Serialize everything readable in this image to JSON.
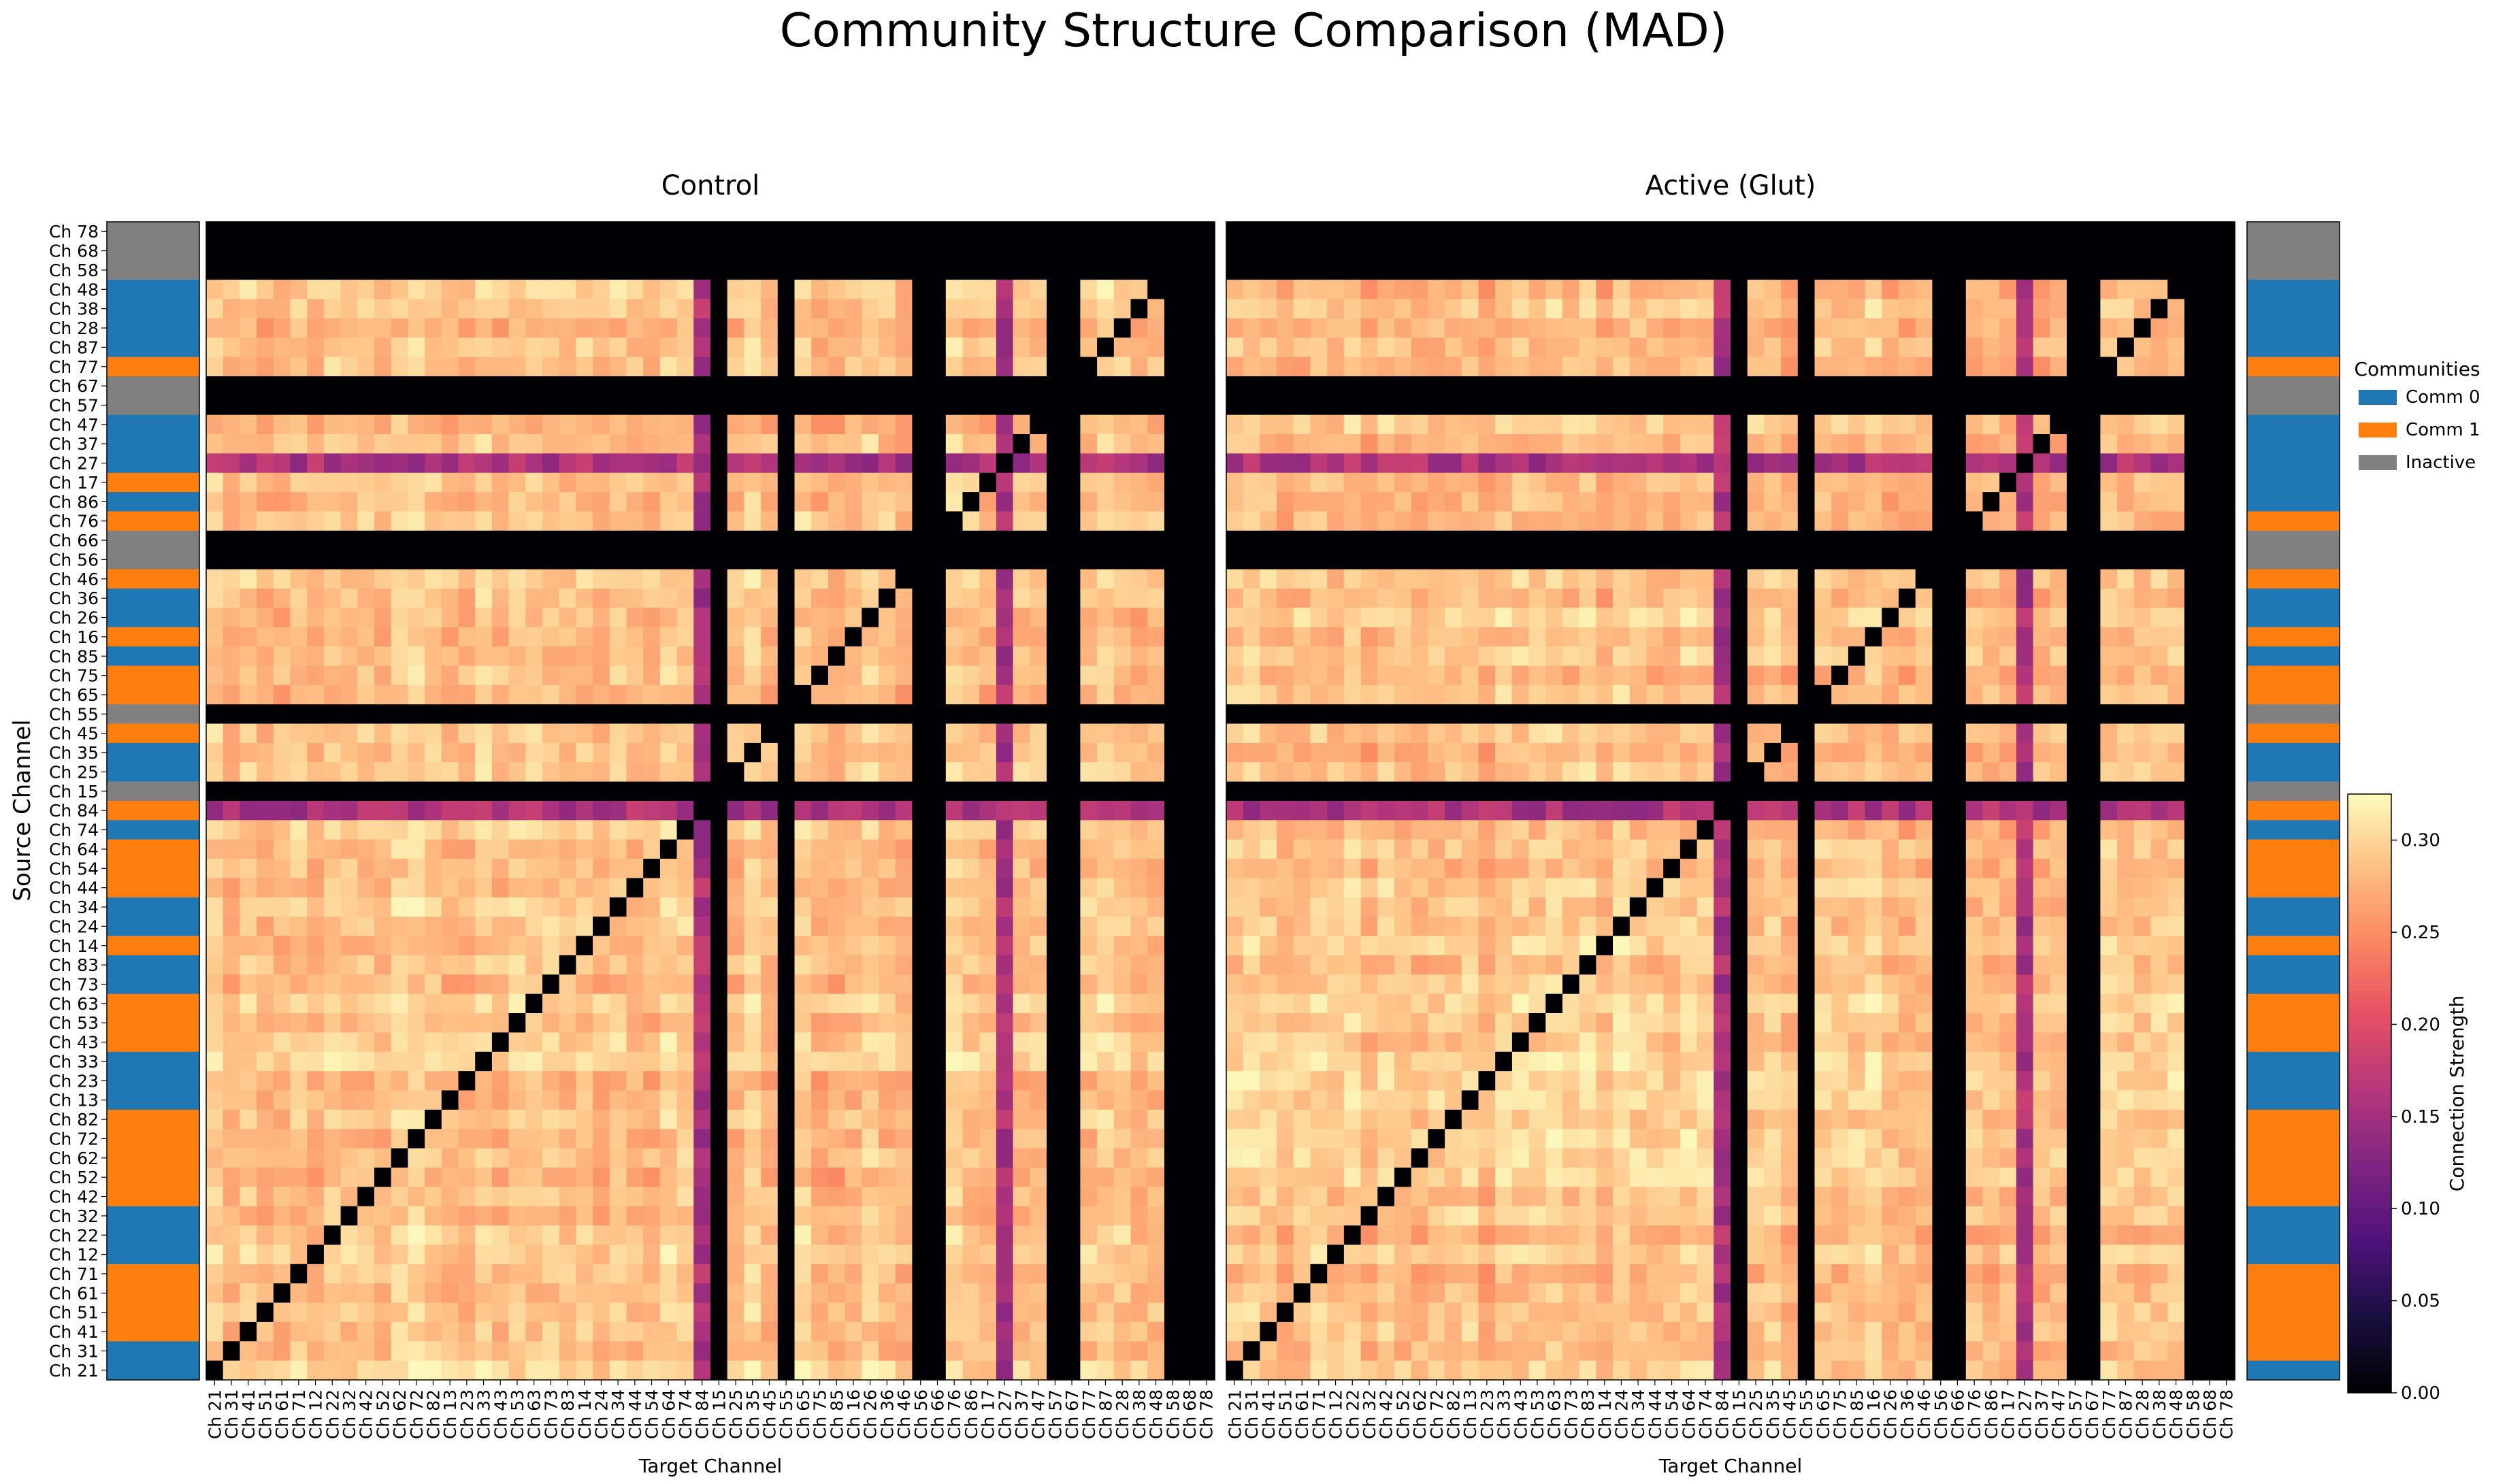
{
  "figure": {
    "title": "Community Structure Comparison (MAD)",
    "ylabel": "Source Channel",
    "xlabel": "Target Channel"
  },
  "legend": {
    "title": "Communities",
    "entries": [
      {
        "label": "Comm 0",
        "color": "#1f77b4"
      },
      {
        "label": "Comm 1",
        "color": "#ff7f0e"
      },
      {
        "label": "Inactive",
        "color": "#808080"
      }
    ]
  },
  "colorbar": {
    "label": "Connection Strength",
    "ticks": [
      "0.00",
      "0.05",
      "0.10",
      "0.15",
      "0.20",
      "0.25",
      "0.30"
    ],
    "tick_values": [
      0,
      0.05,
      0.1,
      0.15,
      0.2,
      0.25,
      0.3
    ],
    "range": [
      0,
      0.325
    ],
    "colormap": "magma"
  },
  "chart_data": [
    {
      "type": "heatmap",
      "title": "Control",
      "xlabel": "Target Channel",
      "ylabel": "Source Channel",
      "rows_top_to_bottom": [
        "Ch 78",
        "Ch 68",
        "Ch 58",
        "Ch 48",
        "Ch 38",
        "Ch 28",
        "Ch 87",
        "Ch 77",
        "Ch 67",
        "Ch 57",
        "Ch 47",
        "Ch 37",
        "Ch 27",
        "Ch 17",
        "Ch 86",
        "Ch 76",
        "Ch 66",
        "Ch 56",
        "Ch 46",
        "Ch 36",
        "Ch 26",
        "Ch 16",
        "Ch 85",
        "Ch 75",
        "Ch 65",
        "Ch 55",
        "Ch 45",
        "Ch 35",
        "Ch 25",
        "Ch 15",
        "Ch 84",
        "Ch 74",
        "Ch 64",
        "Ch 54",
        "Ch 44",
        "Ch 34",
        "Ch 24",
        "Ch 14",
        "Ch 83",
        "Ch 73",
        "Ch 63",
        "Ch 53",
        "Ch 43",
        "Ch 33",
        "Ch 23",
        "Ch 13",
        "Ch 82",
        "Ch 72",
        "Ch 62",
        "Ch 52",
        "Ch 42",
        "Ch 32",
        "Ch 22",
        "Ch 12",
        "Ch 71",
        "Ch 61",
        "Ch 51",
        "Ch 41",
        "Ch 31",
        "Ch 21"
      ],
      "columns_left_to_right": [
        "Ch 21",
        "Ch 31",
        "Ch 41",
        "Ch 51",
        "Ch 61",
        "Ch 71",
        "Ch 12",
        "Ch 22",
        "Ch 32",
        "Ch 42",
        "Ch 52",
        "Ch 62",
        "Ch 72",
        "Ch 82",
        "Ch 13",
        "Ch 23",
        "Ch 33",
        "Ch 43",
        "Ch 53",
        "Ch 63",
        "Ch 73",
        "Ch 83",
        "Ch 14",
        "Ch 24",
        "Ch 34",
        "Ch 44",
        "Ch 54",
        "Ch 64",
        "Ch 74",
        "Ch 84",
        "Ch 15",
        "Ch 25",
        "Ch 35",
        "Ch 45",
        "Ch 55",
        "Ch 65",
        "Ch 75",
        "Ch 85",
        "Ch 16",
        "Ch 26",
        "Ch 36",
        "Ch 46",
        "Ch 56",
        "Ch 66",
        "Ch 76",
        "Ch 86",
        "Ch 17",
        "Ch 27",
        "Ch 37",
        "Ch 47",
        "Ch 57",
        "Ch 67",
        "Ch 77",
        "Ch 87",
        "Ch 28",
        "Ch 38",
        "Ch 48",
        "Ch 58",
        "Ch 68",
        "Ch 78"
      ],
      "row_communities_top_to_bottom": [
        "Inactive",
        "Inactive",
        "Inactive",
        "Comm 0",
        "Comm 0",
        "Comm 0",
        "Comm 0",
        "Comm 1",
        "Inactive",
        "Inactive",
        "Comm 0",
        "Comm 0",
        "Comm 0",
        "Comm 1",
        "Comm 0",
        "Comm 1",
        "Inactive",
        "Inactive",
        "Comm 1",
        "Comm 0",
        "Comm 0",
        "Comm 1",
        "Comm 0",
        "Comm 1",
        "Comm 1",
        "Inactive",
        "Comm 1",
        "Comm 0",
        "Comm 0",
        "Inactive",
        "Comm 1",
        "Comm 0",
        "Comm 1",
        "Comm 1",
        "Comm 1",
        "Comm 0",
        "Comm 0",
        "Comm 1",
        "Comm 0",
        "Comm 0",
        "Comm 1",
        "Comm 1",
        "Comm 1",
        "Comm 0",
        "Comm 0",
        "Comm 0",
        "Comm 1",
        "Comm 1",
        "Comm 1",
        "Comm 1",
        "Comm 1",
        "Comm 0",
        "Comm 0",
        "Comm 0",
        "Comm 1",
        "Comm 1",
        "Comm 1",
        "Comm 1",
        "Comm 0",
        "Comm 0"
      ],
      "inactive_channels": [
        "Ch 15",
        "Ch 55",
        "Ch 56",
        "Ch 66",
        "Ch 57",
        "Ch 67",
        "Ch 58",
        "Ch 68",
        "Ch 78"
      ],
      "weak_channels": [
        "Ch 84",
        "Ch 27"
      ],
      "diagonal_value": 0.0,
      "typical_value_range": [
        0.2,
        0.32
      ]
    },
    {
      "type": "heatmap",
      "title": "Active (Glut)",
      "xlabel": "Target Channel",
      "ylabel": "",
      "rows_top_to_bottom": [
        "Ch 78",
        "Ch 68",
        "Ch 58",
        "Ch 48",
        "Ch 38",
        "Ch 28",
        "Ch 87",
        "Ch 77",
        "Ch 67",
        "Ch 57",
        "Ch 47",
        "Ch 37",
        "Ch 27",
        "Ch 17",
        "Ch 86",
        "Ch 76",
        "Ch 66",
        "Ch 56",
        "Ch 46",
        "Ch 36",
        "Ch 26",
        "Ch 16",
        "Ch 85",
        "Ch 75",
        "Ch 65",
        "Ch 55",
        "Ch 45",
        "Ch 35",
        "Ch 25",
        "Ch 15",
        "Ch 84",
        "Ch 74",
        "Ch 64",
        "Ch 54",
        "Ch 44",
        "Ch 34",
        "Ch 24",
        "Ch 14",
        "Ch 83",
        "Ch 73",
        "Ch 63",
        "Ch 53",
        "Ch 43",
        "Ch 33",
        "Ch 23",
        "Ch 13",
        "Ch 82",
        "Ch 72",
        "Ch 62",
        "Ch 52",
        "Ch 42",
        "Ch 32",
        "Ch 22",
        "Ch 12",
        "Ch 71",
        "Ch 61",
        "Ch 51",
        "Ch 41",
        "Ch 31",
        "Ch 21"
      ],
      "columns_left_to_right": [
        "Ch 21",
        "Ch 31",
        "Ch 41",
        "Ch 51",
        "Ch 61",
        "Ch 71",
        "Ch 12",
        "Ch 22",
        "Ch 32",
        "Ch 42",
        "Ch 52",
        "Ch 62",
        "Ch 72",
        "Ch 82",
        "Ch 13",
        "Ch 23",
        "Ch 33",
        "Ch 43",
        "Ch 53",
        "Ch 63",
        "Ch 73",
        "Ch 83",
        "Ch 14",
        "Ch 24",
        "Ch 34",
        "Ch 44",
        "Ch 54",
        "Ch 64",
        "Ch 74",
        "Ch 84",
        "Ch 15",
        "Ch 25",
        "Ch 35",
        "Ch 45",
        "Ch 55",
        "Ch 65",
        "Ch 75",
        "Ch 85",
        "Ch 16",
        "Ch 26",
        "Ch 36",
        "Ch 46",
        "Ch 56",
        "Ch 66",
        "Ch 76",
        "Ch 86",
        "Ch 17",
        "Ch 27",
        "Ch 37",
        "Ch 47",
        "Ch 57",
        "Ch 67",
        "Ch 77",
        "Ch 87",
        "Ch 28",
        "Ch 38",
        "Ch 48",
        "Ch 58",
        "Ch 68",
        "Ch 78"
      ],
      "row_communities_top_to_bottom": [
        "Inactive",
        "Inactive",
        "Inactive",
        "Comm 0",
        "Comm 0",
        "Comm 0",
        "Comm 0",
        "Comm 1",
        "Inactive",
        "Inactive",
        "Comm 0",
        "Comm 0",
        "Comm 0",
        "Comm 0",
        "Comm 0",
        "Comm 1",
        "Inactive",
        "Inactive",
        "Comm 1",
        "Comm 0",
        "Comm 0",
        "Comm 1",
        "Comm 0",
        "Comm 1",
        "Comm 1",
        "Inactive",
        "Comm 1",
        "Comm 0",
        "Comm 0",
        "Inactive",
        "Comm 1",
        "Comm 0",
        "Comm 1",
        "Comm 1",
        "Comm 1",
        "Comm 0",
        "Comm 0",
        "Comm 1",
        "Comm 0",
        "Comm 0",
        "Comm 1",
        "Comm 1",
        "Comm 1",
        "Comm 0",
        "Comm 0",
        "Comm 0",
        "Comm 1",
        "Comm 1",
        "Comm 1",
        "Comm 1",
        "Comm 1",
        "Comm 0",
        "Comm 0",
        "Comm 0",
        "Comm 1",
        "Comm 1",
        "Comm 1",
        "Comm 1",
        "Comm 1",
        "Comm 0"
      ],
      "inactive_channels": [
        "Ch 15",
        "Ch 55",
        "Ch 56",
        "Ch 66",
        "Ch 57",
        "Ch 67",
        "Ch 58",
        "Ch 68",
        "Ch 78"
      ],
      "weak_channels": [
        "Ch 84",
        "Ch 27"
      ],
      "diagonal_value": 0.0,
      "typical_value_range": [
        0.2,
        0.32
      ]
    }
  ]
}
